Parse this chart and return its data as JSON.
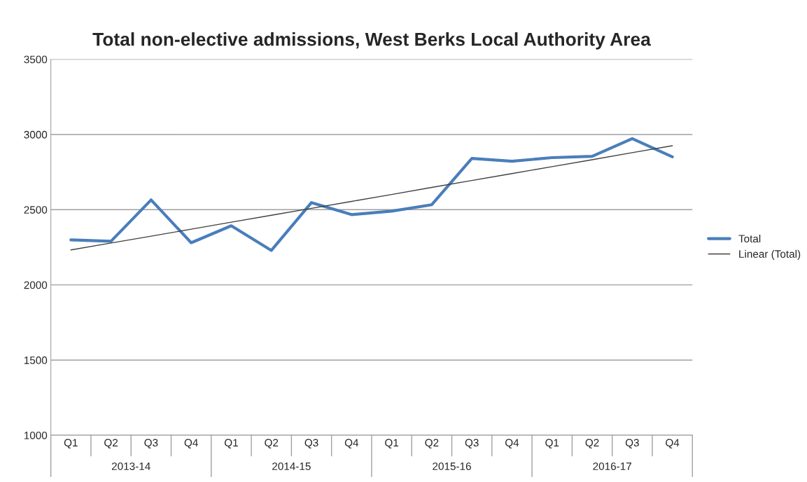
{
  "chart_data": {
    "type": "line",
    "title": "Total non-elective admissions, West Berks Local Authority Area",
    "categories": [
      "Q1",
      "Q2",
      "Q3",
      "Q4",
      "Q1",
      "Q2",
      "Q3",
      "Q4",
      "Q1",
      "Q2",
      "Q3",
      "Q4",
      "Q1",
      "Q2",
      "Q3",
      "Q4"
    ],
    "series": [
      {
        "name": "Total",
        "color": "#4a7ebb",
        "values": [
          2299,
          2290,
          2565,
          2280,
          2393,
          2229,
          2547,
          2467,
          2490,
          2533,
          2841,
          2822,
          2846,
          2855,
          2972,
          2851
        ]
      },
      {
        "name": "Linear (Total)",
        "color": "#404040",
        "line_style": "solid",
        "values": [
          2232,
          2278,
          2324,
          2370,
          2417,
          2463,
          2509,
          2555,
          2601,
          2648,
          2694,
          2740,
          2786,
          2832,
          2879,
          2925
        ]
      }
    ],
    "annotations": [
      "2013-14",
      "2014-15",
      "2015-16",
      "2016-17"
    ],
    "ylim": [
      1000,
      3500
    ],
    "yticks": [
      1000,
      1500,
      2000,
      2500,
      3000,
      3500
    ],
    "grid": "y",
    "legend": "right",
    "marker": "none"
  }
}
